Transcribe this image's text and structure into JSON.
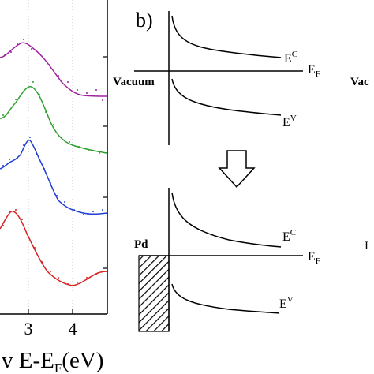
{
  "panel_a": {
    "x_ticks": [
      "3",
      "4"
    ],
    "x_label_main": "v E-E",
    "x_label_sub": "F",
    "x_label_unit": "(eV)",
    "series": [
      {
        "color": "#a020a0"
      },
      {
        "color": "#2ca02c"
      },
      {
        "color": "#1f3fd6"
      },
      {
        "color": "#d62020"
      }
    ]
  },
  "panel_b": {
    "label": "b)",
    "top": {
      "ec_main": "E",
      "ec_sup": "C",
      "ef_main": "E",
      "ef_sub": "F",
      "ev_main": "E",
      "ev_sup": "V",
      "left_label": "Vacuum"
    },
    "bottom": {
      "ec_main": "E",
      "ec_sup": "C",
      "ef_main": "E",
      "ef_sub": "F",
      "ev_main": "E",
      "ev_sup": "V",
      "left_label": "Pd"
    }
  },
  "panel_c_fragment": {
    "top_text": "Vac",
    "bottom_text": "I"
  }
}
